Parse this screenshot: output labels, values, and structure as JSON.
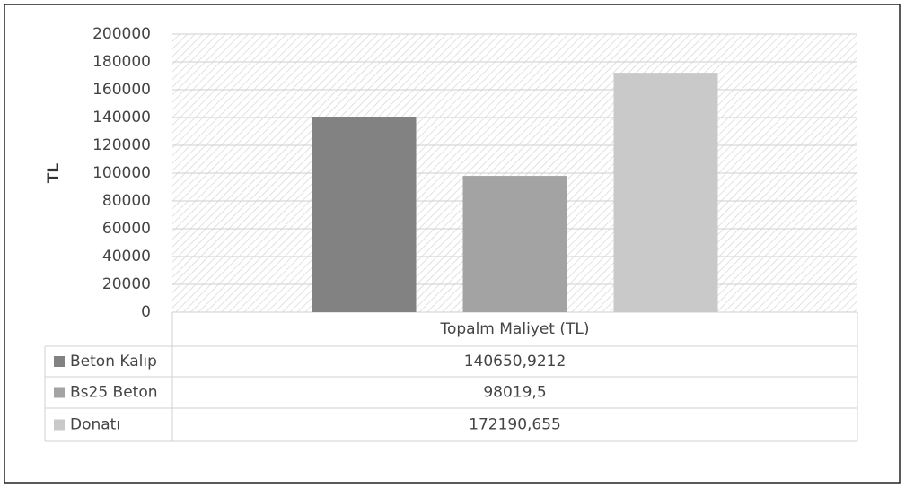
{
  "chart_data": {
    "type": "bar",
    "y_label": "TL",
    "categories": [
      "Topalm Maliyet (TL)"
    ],
    "series": [
      {
        "name": "Beton Kalıp",
        "color": "#828282",
        "values": [
          140650.9212
        ],
        "value_labels": [
          "140650,9212"
        ]
      },
      {
        "name": "Bs25 Beton",
        "color": "#a3a3a3",
        "values": [
          98019.5
        ],
        "value_labels": [
          "98019,5"
        ]
      },
      {
        "name": "Donatı",
        "color": "#c9c9c9",
        "values": [
          172190.655
        ],
        "value_labels": [
          "172190,655"
        ]
      }
    ],
    "ylim": [
      0,
      200000
    ],
    "yticks": [
      0,
      20000,
      40000,
      60000,
      80000,
      100000,
      120000,
      140000,
      160000,
      180000,
      200000
    ],
    "grid": true
  }
}
